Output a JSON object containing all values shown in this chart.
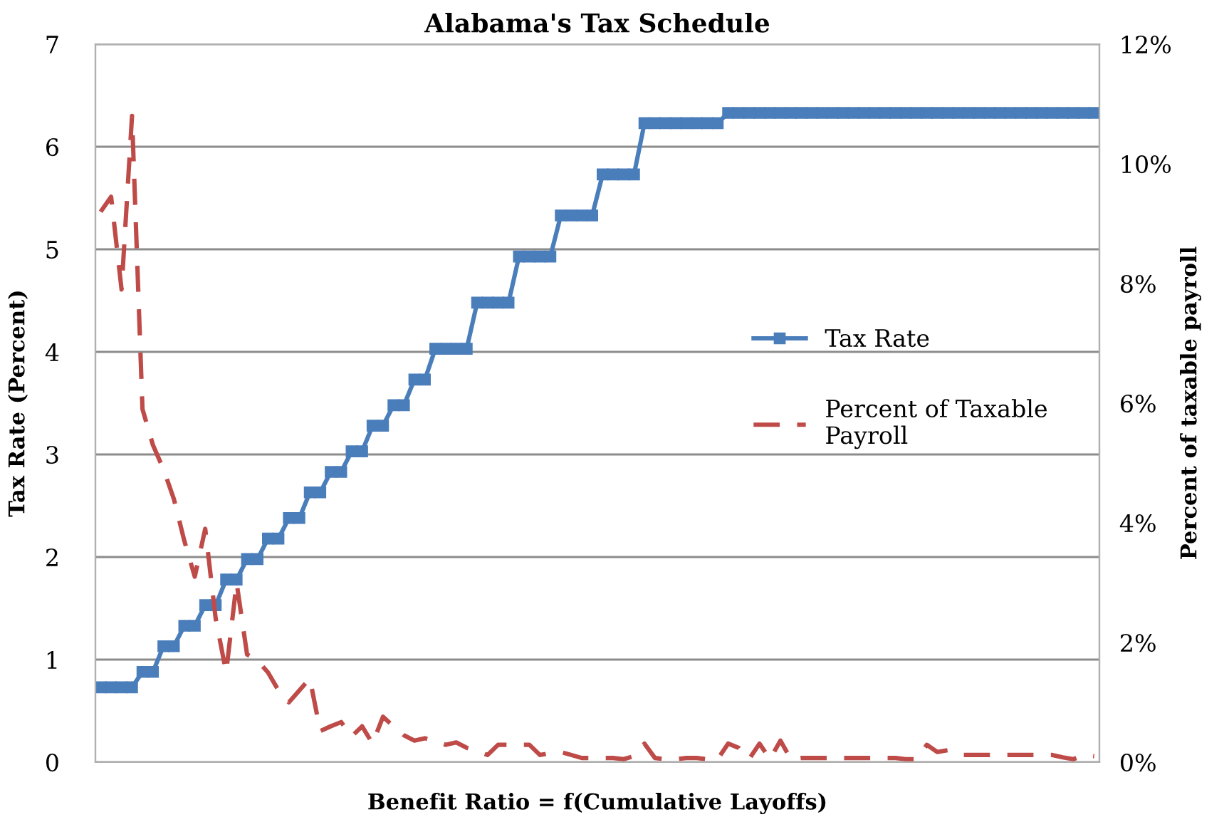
{
  "chart_data": {
    "type": "line",
    "title": "Alabama's Tax Schedule",
    "xlabel": "Benefit Ratio = f(Cumulative Layoffs)",
    "ylabel": "Tax Rate (Percent)",
    "y2label": "Percent of taxable payroll",
    "categories": [
      null,
      null,
      null,
      null,
      null,
      null,
      null,
      null,
      null,
      null,
      null,
      null,
      null,
      null,
      null,
      null,
      null,
      null,
      null,
      null,
      null,
      null,
      null,
      null,
      null,
      null,
      null,
      null,
      null,
      null,
      null,
      null,
      null,
      null,
      null,
      null,
      null,
      null,
      null,
      null,
      null,
      null,
      null,
      null,
      null,
      null,
      null,
      null,
      null,
      null,
      null,
      null,
      null,
      null,
      null,
      null,
      null,
      null,
      null,
      null,
      null,
      null,
      null,
      null,
      null,
      null,
      null,
      null,
      null,
      null,
      null,
      null,
      null,
      null,
      null,
      null,
      null,
      null,
      null,
      null,
      null,
      null,
      null,
      null,
      null,
      null,
      null,
      null,
      null,
      null,
      null,
      null,
      null,
      null,
      null,
      null
    ],
    "series": [
      {
        "name": "Tax Rate",
        "color": "#4a7ebb",
        "marker": "square",
        "line_style": "solid",
        "values": [
          0.73,
          0.73,
          0.73,
          0.73,
          0.88,
          0.88,
          1.13,
          1.13,
          1.33,
          1.33,
          1.53,
          1.53,
          1.78,
          1.78,
          1.98,
          1.98,
          2.18,
          2.18,
          2.38,
          2.38,
          2.63,
          2.63,
          2.83,
          2.83,
          3.03,
          3.03,
          3.28,
          3.28,
          3.48,
          3.48,
          3.73,
          3.73,
          4.03,
          4.03,
          4.03,
          4.03,
          4.48,
          4.48,
          4.48,
          4.48,
          4.93,
          4.93,
          4.93,
          4.93,
          5.33,
          5.33,
          5.33,
          5.33,
          5.73,
          5.73,
          5.73,
          5.73,
          6.23,
          6.23,
          6.23,
          6.23,
          6.23,
          6.23,
          6.23,
          6.23,
          6.33,
          6.33,
          6.33,
          6.33,
          6.33,
          6.33,
          6.33,
          6.33,
          6.33,
          6.33,
          6.33,
          6.33,
          6.33,
          6.33,
          6.33,
          6.33,
          6.33,
          6.33,
          6.33,
          6.33,
          6.33,
          6.33,
          6.33,
          6.33,
          6.33,
          6.33,
          6.33,
          6.33,
          6.33,
          6.33,
          6.33,
          6.33,
          6.33,
          6.33,
          6.33,
          6.33
        ]
      },
      {
        "name": "Percent of Taxable Payroll",
        "color": "#be4b48",
        "marker": "none",
        "line_style": "dashed",
        "axis": "y2",
        "values": [
          9.2,
          9.45,
          7.9,
          10.8,
          5.9,
          5.3,
          4.9,
          4.4,
          3.7,
          3.1,
          3.9,
          2.4,
          1.5,
          3.0,
          1.8,
          1.7,
          1.5,
          1.2,
          1.0,
          1.2,
          1.4,
          0.52,
          0.6,
          0.67,
          0.43,
          0.6,
          0.31,
          0.76,
          0.6,
          0.45,
          0.36,
          0.4,
          0.35,
          0.29,
          0.33,
          0.24,
          0.18,
          0.12,
          0.29,
          0.29,
          0.29,
          0.29,
          0.12,
          0.15,
          0.17,
          0.12,
          0.07,
          0.07,
          0.07,
          0.07,
          0.05,
          0.1,
          0.31,
          0.07,
          0.05,
          0.05,
          0.07,
          0.07,
          0.05,
          0.05,
          0.31,
          0.24,
          0.05,
          0.31,
          0.05,
          0.36,
          0.05,
          0.07,
          0.07,
          0.07,
          0.07,
          0.07,
          0.07,
          0.07,
          0.07,
          0.07,
          0.07,
          0.05,
          0.05,
          0.29,
          0.17,
          0.2,
          0.12,
          0.12,
          0.12,
          0.12,
          0.12,
          0.12,
          0.12,
          0.12,
          0.12,
          0.12,
          0.08,
          0.05,
          0.12,
          0.1
        ]
      }
    ],
    "ylim": [
      0,
      7
    ],
    "yticks": [
      0,
      1,
      2,
      3,
      4,
      5,
      6,
      7
    ],
    "y2lim": [
      0,
      12
    ],
    "y2ticks": [
      {
        "value": 0,
        "label": "0%"
      },
      {
        "value": 2,
        "label": "2%"
      },
      {
        "value": 4,
        "label": "4%"
      },
      {
        "value": 6,
        "label": "6%"
      },
      {
        "value": 8,
        "label": "8%"
      },
      {
        "value": 10,
        "label": "10%"
      },
      {
        "value": 12,
        "label": "12%"
      }
    ],
    "grid": "y",
    "legend": "right"
  }
}
